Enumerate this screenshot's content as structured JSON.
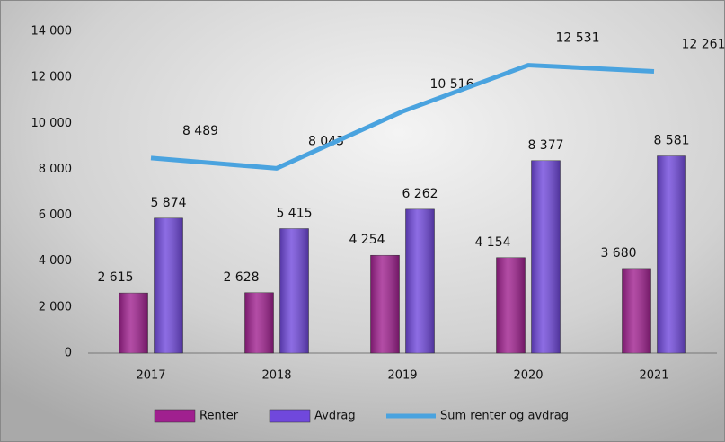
{
  "chart_data": {
    "type": "bar",
    "categories": [
      "2017",
      "2018",
      "2019",
      "2020",
      "2021"
    ],
    "series": [
      {
        "name": "Renter",
        "type": "bar",
        "color": "#a0208f",
        "values": [
          2615,
          2628,
          4254,
          4154,
          3680
        ],
        "value_labels": [
          "2 615",
          "2 628",
          "4 254",
          "4 154",
          "3 680"
        ]
      },
      {
        "name": "Avdrag",
        "type": "bar",
        "color": "#7048dc",
        "values": [
          5874,
          5415,
          6262,
          8377,
          8581
        ],
        "value_labels": [
          "5 874",
          "5 415",
          "6 262",
          "8 377",
          "8 581"
        ]
      },
      {
        "name": "Sum renter og avdrag",
        "type": "line",
        "color": "#4aa3df",
        "values": [
          8489,
          8043,
          10516,
          12531,
          12261
        ],
        "value_labels": [
          "8 489",
          "8 043",
          "10 516",
          "12 531",
          "12 261"
        ]
      }
    ],
    "ylim": [
      0,
      14000
    ],
    "yticks": [
      0,
      {
        "value": 2000,
        "label": "2 000"
      },
      {
        "value": 4000,
        "label": "4 000"
      },
      {
        "value": 6000,
        "label": "6 000"
      },
      {
        "value": 8000,
        "label": "8 000"
      },
      {
        "value": 10000,
        "label": "10 000"
      },
      {
        "value": 12000,
        "label": "12 000"
      },
      {
        "value": 14000,
        "label": "14 000"
      }
    ],
    "legend": "bottom"
  }
}
